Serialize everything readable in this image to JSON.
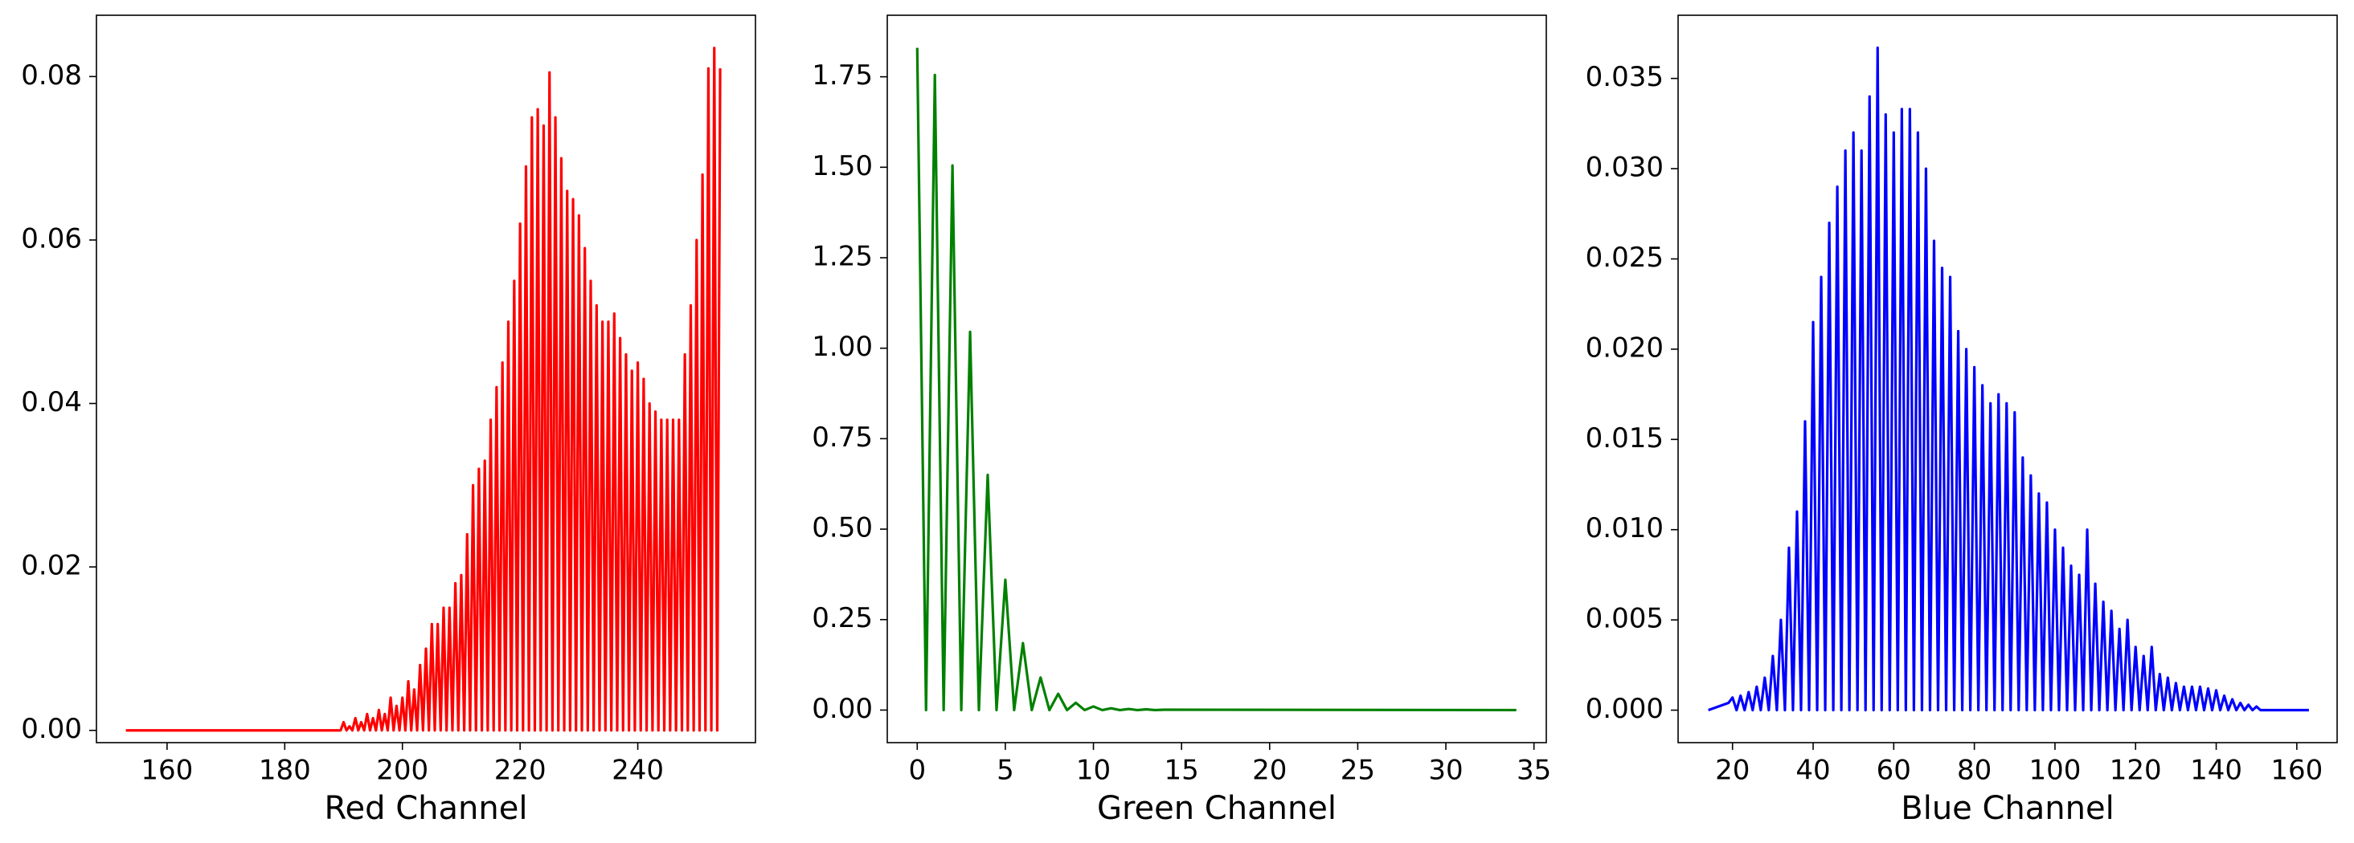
{
  "chart_data": [
    {
      "type": "line",
      "xlabel": "Red Channel",
      "color": "#ff0000",
      "x": [
        153,
        189.5,
        190,
        190.5,
        191,
        191.5,
        192,
        192.5,
        193,
        193.5,
        194,
        194.5,
        195,
        195.5,
        196,
        196.5,
        197,
        197.5,
        198,
        198.5,
        199,
        199.5,
        200,
        200.5,
        201,
        201.5,
        202,
        202.5,
        203,
        203.5,
        204,
        204.5,
        205,
        205.5,
        206,
        206.5,
        207,
        207.5,
        208,
        208.5,
        209,
        209.5,
        210,
        210.5,
        211,
        211.5,
        212,
        212.5,
        213,
        213.5,
        214,
        214.5,
        215,
        215.5,
        216,
        216.5,
        217,
        217.5,
        218,
        218.5,
        219,
        219.5,
        220,
        220.5,
        221,
        221.5,
        222,
        222.5,
        223,
        223.5,
        224,
        224.5,
        225,
        225.5,
        226,
        226.5,
        227,
        227.5,
        228,
        228.5,
        229,
        229.5,
        230,
        230.5,
        231,
        231.5,
        232,
        232.5,
        233,
        233.5,
        234,
        234.5,
        235,
        235.5,
        236,
        236.5,
        237,
        237.5,
        238,
        238.5,
        239,
        239.5,
        240,
        240.5,
        241,
        241.5,
        242,
        242.5,
        243,
        243.5,
        244,
        244.5,
        245,
        245.5,
        246,
        246.5,
        247,
        247.5,
        248,
        248.5,
        249,
        249.5,
        250,
        250.5,
        251,
        251.5,
        252,
        252.5,
        253,
        253.5,
        254
      ],
      "values": [
        0,
        0,
        0.001,
        0,
        0.0005,
        0,
        0.0015,
        0,
        0.001,
        0,
        0.002,
        0,
        0.0015,
        0,
        0.0025,
        0,
        0.002,
        0,
        0.004,
        0,
        0.003,
        0,
        0.004,
        0,
        0.006,
        0,
        0.005,
        0,
        0.008,
        0,
        0.01,
        0,
        0.013,
        0,
        0.013,
        0,
        0.015,
        0,
        0.015,
        0,
        0.018,
        0,
        0.019,
        0,
        0.024,
        0,
        0.03,
        0,
        0.032,
        0,
        0.033,
        0,
        0.038,
        0,
        0.042,
        0,
        0.045,
        0,
        0.05,
        0,
        0.055,
        0,
        0.062,
        0,
        0.069,
        0,
        0.075,
        0,
        0.076,
        0,
        0.074,
        0,
        0.0805,
        0,
        0.075,
        0,
        0.07,
        0,
        0.066,
        0,
        0.065,
        0,
        0.063,
        0,
        0.059,
        0,
        0.055,
        0,
        0.052,
        0,
        0.05,
        0,
        0.05,
        0,
        0.051,
        0,
        0.048,
        0,
        0.046,
        0,
        0.044,
        0,
        0.045,
        0,
        0.043,
        0,
        0.04,
        0,
        0.039,
        0,
        0.038,
        0,
        0.038,
        0,
        0.038,
        0,
        0.038,
        0,
        0.046,
        0,
        0.052,
        0,
        0.06,
        0,
        0.068,
        0,
        0.081,
        0,
        0.0835,
        0,
        0.081
      ],
      "xlim": [
        148,
        260
      ],
      "xticks": [
        160,
        180,
        200,
        220,
        240
      ],
      "ylim": [
        -0.0015,
        0.0875
      ],
      "yticks": [
        {
          "value": 0,
          "label": "0.00"
        },
        {
          "value": 0.02,
          "label": "0.02"
        },
        {
          "value": 0.04,
          "label": "0.04"
        },
        {
          "value": 0.06,
          "label": "0.06"
        },
        {
          "value": 0.08,
          "label": "0.08"
        }
      ]
    },
    {
      "type": "line",
      "xlabel": "Green Channel",
      "color": "#008000",
      "x": [
        0,
        0.5,
        1,
        1.5,
        2,
        2.5,
        3,
        3.5,
        4,
        4.5,
        5,
        5.5,
        6,
        6.5,
        7,
        7.5,
        8,
        8.5,
        9,
        9.5,
        10,
        10.5,
        11,
        11.5,
        12,
        12.5,
        13,
        13.5,
        14,
        34
      ],
      "values": [
        1.83,
        0,
        1.755,
        0,
        1.505,
        0,
        1.045,
        0,
        0.65,
        0,
        0.36,
        0,
        0.185,
        0,
        0.09,
        0,
        0.045,
        0,
        0.02,
        0,
        0.01,
        0,
        0.005,
        0,
        0.003,
        0,
        0.002,
        0,
        0.001,
        0
      ],
      "xlim": [
        -1.7,
        35.7
      ],
      "xticks": [
        0,
        5,
        10,
        15,
        20,
        25,
        30,
        35
      ],
      "ylim": [
        -0.09,
        1.92
      ],
      "yticks": [
        {
          "value": 0,
          "label": "0.00"
        },
        {
          "value": 0.25,
          "label": "0.25"
        },
        {
          "value": 0.5,
          "label": "0.50"
        },
        {
          "value": 0.75,
          "label": "0.75"
        },
        {
          "value": 1,
          "label": "1.00"
        },
        {
          "value": 1.25,
          "label": "1.25"
        },
        {
          "value": 1.5,
          "label": "1.50"
        },
        {
          "value": 1.75,
          "label": "1.75"
        }
      ]
    },
    {
      "type": "line",
      "xlabel": "Blue Channel",
      "color": "#0000ff",
      "x": [
        14,
        19,
        20,
        21,
        22,
        23,
        24,
        25,
        26,
        27,
        28,
        29,
        30,
        31,
        32,
        33,
        34,
        35,
        36,
        37,
        38,
        39,
        40,
        41,
        42,
        43,
        44,
        45,
        46,
        47,
        48,
        49,
        50,
        51,
        52,
        53,
        54,
        55,
        56,
        57,
        58,
        59,
        60,
        61,
        62,
        63,
        64,
        65,
        66,
        67,
        68,
        69,
        70,
        71,
        72,
        73,
        74,
        75,
        76,
        77,
        78,
        79,
        80,
        81,
        82,
        83,
        84,
        85,
        86,
        87,
        88,
        89,
        90,
        91,
        92,
        93,
        94,
        95,
        96,
        97,
        98,
        99,
        100,
        101,
        102,
        103,
        104,
        105,
        106,
        107,
        108,
        109,
        110,
        111,
        112,
        113,
        114,
        115,
        116,
        117,
        118,
        119,
        120,
        121,
        122,
        123,
        124,
        125,
        126,
        127,
        128,
        129,
        130,
        131,
        132,
        133,
        134,
        135,
        136,
        137,
        138,
        139,
        140,
        141,
        142,
        143,
        144,
        145,
        146,
        147,
        148,
        149,
        150,
        151,
        163
      ],
      "values": [
        0,
        0.0004,
        0.0007,
        0,
        0.0008,
        0,
        0.001,
        0,
        0.0013,
        0,
        0.0018,
        0,
        0.003,
        0,
        0.005,
        0,
        0.009,
        0,
        0.011,
        0,
        0.016,
        0,
        0.0215,
        0,
        0.024,
        0,
        0.027,
        0,
        0.029,
        0,
        0.031,
        0,
        0.032,
        0,
        0.031,
        0,
        0.034,
        0,
        0.0367,
        0,
        0.033,
        0,
        0.032,
        0,
        0.0333,
        0,
        0.0333,
        0,
        0.032,
        0,
        0.03,
        0,
        0.026,
        0,
        0.0245,
        0,
        0.024,
        0,
        0.021,
        0,
        0.02,
        0,
        0.019,
        0,
        0.018,
        0,
        0.017,
        0,
        0.0175,
        0,
        0.017,
        0,
        0.0165,
        0,
        0.014,
        0,
        0.013,
        0,
        0.012,
        0,
        0.0115,
        0,
        0.01,
        0,
        0.009,
        0,
        0.008,
        0,
        0.0075,
        0,
        0.01,
        0,
        0.007,
        0,
        0.006,
        0,
        0.0055,
        0,
        0.0045,
        0,
        0.005,
        0,
        0.0035,
        0,
        0.003,
        0,
        0.0035,
        0,
        0.002,
        0,
        0.0018,
        0,
        0.0015,
        0,
        0.0013,
        0,
        0.0013,
        0,
        0.0013,
        0,
        0.0012,
        0,
        0.0011,
        0,
        0.0008,
        0,
        0.0006,
        0,
        0.0004,
        0,
        0.0003,
        0,
        0.0002,
        0,
        0
      ],
      "xlim": [
        6.5,
        170
      ],
      "xticks": [
        20,
        40,
        60,
        80,
        100,
        120,
        140,
        160
      ],
      "ylim": [
        -0.0018,
        0.0385
      ],
      "yticks": [
        {
          "value": 0,
          "label": "0.000"
        },
        {
          "value": 0.005,
          "label": "0.005"
        },
        {
          "value": 0.01,
          "label": "0.010"
        },
        {
          "value": 0.015,
          "label": "0.015"
        },
        {
          "value": 0.02,
          "label": "0.020"
        },
        {
          "value": 0.025,
          "label": "0.025"
        },
        {
          "value": 0.03,
          "label": "0.030"
        },
        {
          "value": 0.035,
          "label": "0.035"
        }
      ]
    }
  ]
}
